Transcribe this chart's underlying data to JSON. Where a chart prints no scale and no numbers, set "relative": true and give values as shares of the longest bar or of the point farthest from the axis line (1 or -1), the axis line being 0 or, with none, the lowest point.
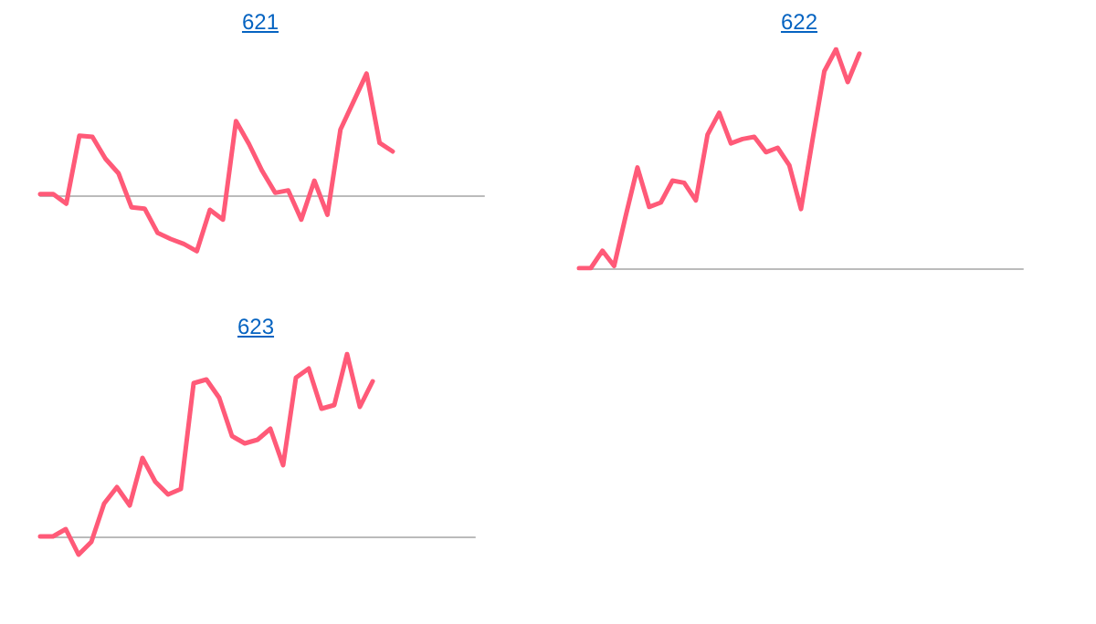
{
  "chart_data": [
    {
      "type": "line",
      "title": "621",
      "relative": true,
      "line_style": "solid",
      "categories": [
        null,
        null,
        null,
        null,
        null,
        null,
        null,
        null,
        null,
        null,
        null,
        null,
        null,
        null,
        null,
        null,
        null,
        null,
        null,
        null,
        null,
        null,
        null,
        null,
        null,
        null,
        null,
        null,
        null,
        null,
        null,
        null,
        null,
        null,
        null
      ],
      "series": [
        {
          "color": "#ff5a78",
          "values": [
            0.01,
            0.01,
            -0.07,
            0.49,
            0.48,
            0.3,
            0.18,
            -0.1,
            -0.11,
            -0.31,
            -0.36,
            -0.4,
            -0.46,
            -0.12,
            -0.2,
            0.61,
            0.42,
            0.2,
            0.02,
            0.04,
            -0.2,
            0.12,
            -0.16,
            0.54,
            0.77,
            1,
            0.43,
            0.36,
            null,
            null,
            null,
            null,
            null,
            null,
            null
          ]
        }
      ]
    },
    {
      "type": "line",
      "title": "622",
      "relative": true,
      "line_style": "solid",
      "categories": [
        null,
        null,
        null,
        null,
        null,
        null,
        null,
        null,
        null,
        null,
        null,
        null,
        null,
        null,
        null,
        null,
        null,
        null,
        null,
        null,
        null,
        null,
        null,
        null,
        null,
        null,
        null,
        null,
        null,
        null,
        null,
        null,
        null,
        null,
        null,
        null,
        null,
        null,
        null
      ],
      "series": [
        {
          "color": "#ff5a78",
          "values": [
            0,
            0,
            0.08,
            0.01,
            0.24,
            0.46,
            0.28,
            0.3,
            0.4,
            0.39,
            0.31,
            0.61,
            0.71,
            0.57,
            0.59,
            0.6,
            0.53,
            0.55,
            0.47,
            0.27,
            0.59,
            0.9,
            1,
            0.85,
            0.98,
            null,
            null,
            null,
            null,
            null,
            null,
            null,
            null,
            null,
            null,
            null,
            null,
            null,
            null
          ]
        }
      ]
    },
    {
      "type": "line",
      "title": "623",
      "relative": true,
      "line_style": "solid",
      "categories": [
        null,
        null,
        null,
        null,
        null,
        null,
        null,
        null,
        null,
        null,
        null,
        null,
        null,
        null,
        null,
        null,
        null,
        null,
        null,
        null,
        null,
        null,
        null,
        null,
        null,
        null,
        null,
        null,
        null,
        null,
        null,
        null,
        null,
        null,
        null
      ],
      "series": [
        {
          "color": "#ff5a78",
          "values": [
            0,
            0,
            0.04,
            -0.1,
            -0.03,
            0.18,
            0.27,
            0.17,
            0.43,
            0.3,
            0.23,
            0.26,
            0.84,
            0.86,
            0.76,
            0.55,
            0.51,
            0.53,
            0.59,
            0.39,
            0.87,
            0.92,
            0.7,
            0.72,
            1,
            0.71,
            0.85,
            null,
            null,
            null,
            null,
            null,
            null,
            null,
            null
          ]
        }
      ]
    }
  ]
}
